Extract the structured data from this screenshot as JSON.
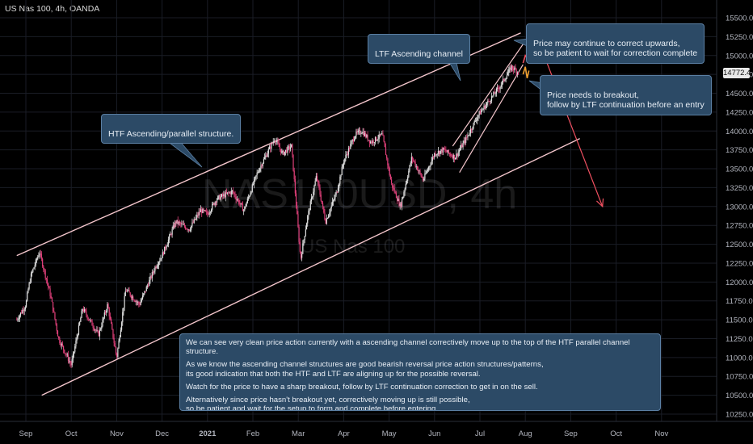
{
  "header": {
    "ticker_label": "US Nas 100, 4h, OANDA"
  },
  "watermark": {
    "symbol": "NAS100USD, 4h",
    "name": "US Nas 100"
  },
  "annotations": {
    "htf_label": "HTF Ascending/parallel structure.",
    "ltf_label": "LTF Ascending channel",
    "correct_up": "Price may continue to correct upwards,\nso be patient to wait for correction complete",
    "breakout": "Price needs to breakout,\nfollow by LTF continuation before an entry",
    "note_paragraphs": [
      "We can see very clean price action currently with a ascending channel correctively move up to the top of the HTF parallel channel structure.",
      "As we know the ascending channel structures are good bearish reversal price action structures/patterns,\nits good indication that both the HTF and LTF are aligning up for the possible reversal.",
      "Watch for the price to have a sharp breakout, follow by LTF continuation correction to get in on the sell.",
      "Alternatively since price hasn't breakout yet, correctively moving up is still possible,\nso be patient and wait for the setup to form and complete before entering."
    ]
  },
  "current_price": "14772.4",
  "colors": {
    "up": "#e0e0e0",
    "down": "#e0407a",
    "channel": "#f4c6cc",
    "arrow": "#f05060",
    "projection_up": "#f05060",
    "projection_down": "#f0a030",
    "callout_bg": "#2c4a66"
  },
  "chart_data": {
    "type": "line",
    "title": "",
    "xlabel": "",
    "ylabel": "",
    "ylim": [
      10000,
      15750
    ],
    "y_ticks": [
      10250,
      10500,
      10750,
      11000,
      11250,
      11500,
      11750,
      12000,
      12250,
      12500,
      12750,
      13000,
      13250,
      13500,
      13750,
      14000,
      14250,
      14500,
      14750,
      15000,
      15250,
      15500
    ],
    "x_tick_labels": [
      "Sep",
      "Oct",
      "Nov",
      "Dec",
      "2021",
      "Feb",
      "Mar",
      "Apr",
      "May",
      "Jun",
      "Jul",
      "Aug",
      "Sep",
      "Oct",
      "Nov"
    ],
    "x_tick_months": [
      0,
      1,
      2,
      3,
      4,
      5,
      6,
      7,
      8,
      9,
      10,
      11,
      12,
      13,
      14
    ],
    "price_path": {
      "x": [
        -0.2,
        0.0,
        0.05,
        0.12,
        0.3,
        0.55,
        0.72,
        1.0,
        1.25,
        1.6,
        1.8,
        2.0,
        2.2,
        2.5,
        2.85,
        3.0,
        3.3,
        3.6,
        3.85,
        4.0,
        4.2,
        4.55,
        4.8,
        5.1,
        5.35,
        5.48,
        5.65,
        5.85,
        6.05,
        6.2,
        6.4,
        6.6,
        6.85,
        7.0,
        7.25,
        7.4,
        7.6,
        7.85,
        8.05,
        8.25,
        8.5,
        8.75,
        9.0,
        9.2,
        9.45,
        9.7,
        9.95,
        10.2,
        10.45,
        10.7,
        10.85
      ],
      "y": [
        11500,
        11700,
        11900,
        12100,
        12400,
        11800,
        11250,
        10900,
        11650,
        11300,
        11700,
        11000,
        11900,
        11700,
        12200,
        12350,
        12800,
        12700,
        12950,
        12900,
        13100,
        13200,
        12950,
        13450,
        13750,
        13900,
        13700,
        13800,
        12300,
        12850,
        13400,
        12800,
        13200,
        13600,
        13950,
        14000,
        13850,
        13950,
        13300,
        13000,
        13650,
        13350,
        13700,
        13750,
        13650,
        13900,
        14200,
        14400,
        14600,
        14850,
        14772.4
      ]
    },
    "htf_channel": {
      "upper": [
        [
          -0.2,
          12350
        ],
        [
          10.9,
          15300
        ]
      ],
      "lower": [
        [
          0.35,
          10500
        ],
        [
          12.2,
          13900
        ]
      ]
    },
    "ltf_channel": {
      "upper": [
        [
          9.4,
          13800
        ],
        [
          10.95,
          15150
        ]
      ],
      "lower": [
        [
          9.55,
          13450
        ],
        [
          10.95,
          14880
        ]
      ]
    },
    "projection": {
      "up": {
        "x": [
          10.95,
          11.0,
          11.06,
          11.12,
          11.18,
          11.24,
          11.3
        ],
        "y": [
          14900,
          15000,
          14950,
          15100,
          15050,
          15200,
          15150
        ]
      },
      "down": {
        "x": [
          10.95,
          11.0,
          11.04,
          11.08
        ],
        "y": [
          14750,
          14850,
          14700,
          14800
        ]
      }
    },
    "arrow": {
      "from": [
        11.35,
        15100
      ],
      "to": [
        12.7,
        13000
      ]
    }
  }
}
